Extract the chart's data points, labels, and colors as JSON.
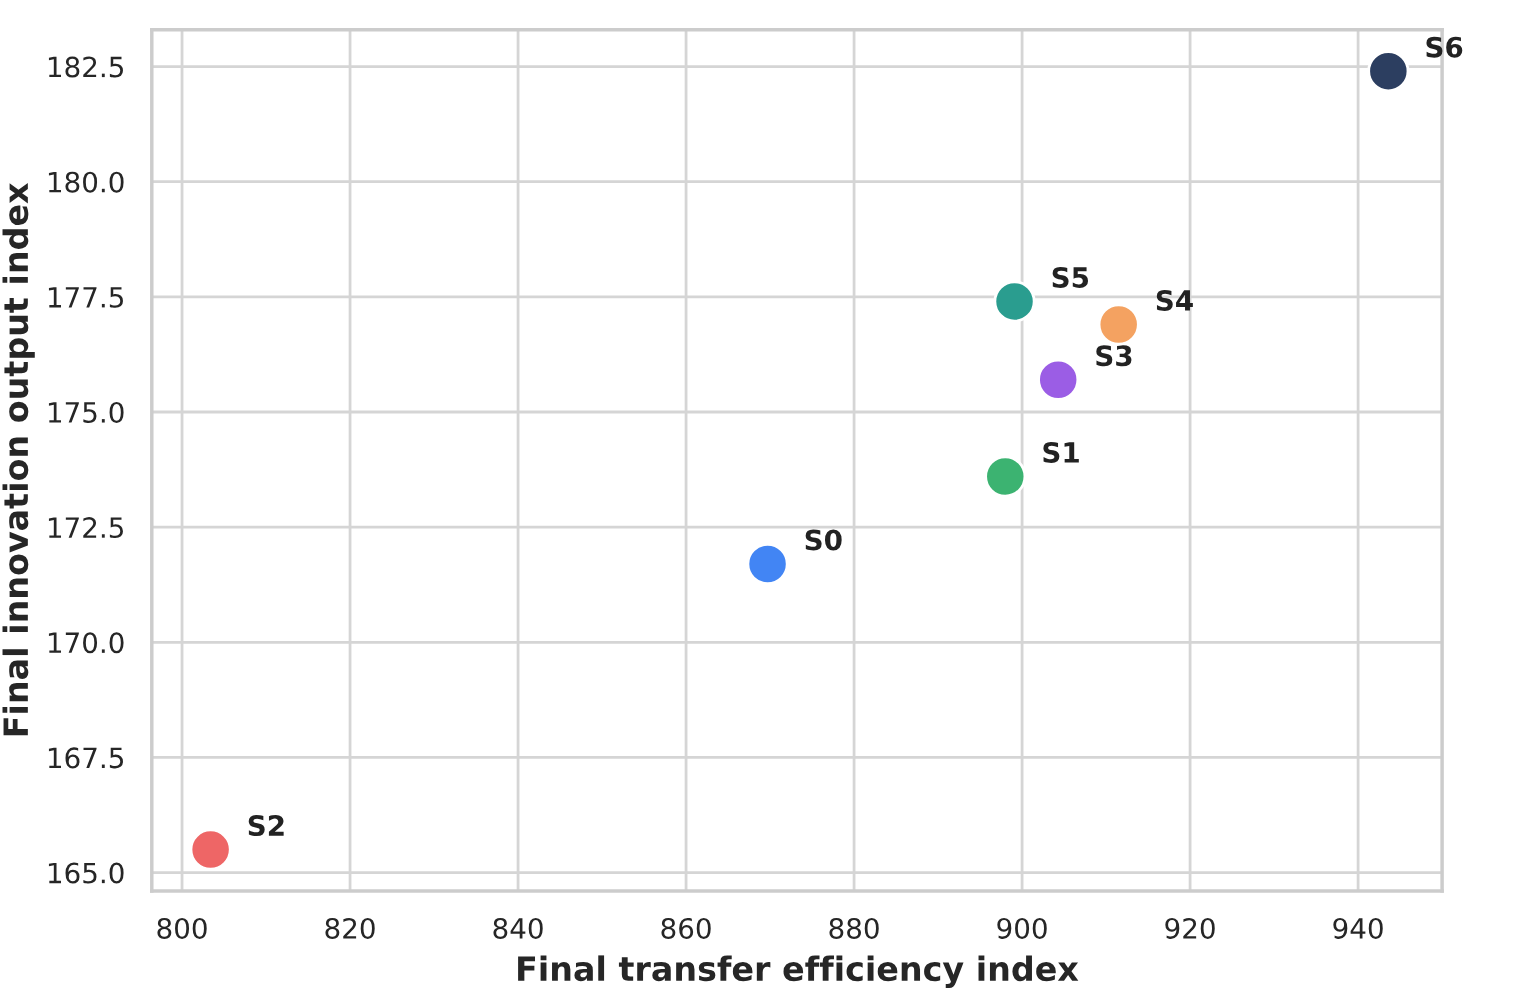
{
  "chart_data": {
    "type": "scatter",
    "xlabel": "Final transfer efficiency index",
    "ylabel": "Final innovation output index",
    "xlim": [
      796.4,
      950
    ],
    "ylim": [
      164.6,
      183.3
    ],
    "xticks": [
      800,
      820,
      840,
      860,
      880,
      900,
      920,
      940
    ],
    "yticks": [
      {
        "value": 165,
        "label": "165.0"
      },
      {
        "value": 167.5,
        "label": "167.5"
      },
      {
        "value": 170,
        "label": "170.0"
      },
      {
        "value": 172.5,
        "label": "172.5"
      },
      {
        "value": 175,
        "label": "175.0"
      },
      {
        "value": 177.5,
        "label": "177.5"
      },
      {
        "value": 180,
        "label": "180.0"
      },
      {
        "value": 182.5,
        "label": "182.5"
      }
    ],
    "grid": true,
    "legend": false,
    "marker": "circle",
    "series": [
      {
        "name": "S0",
        "color": "#4285f4",
        "x": [
          869.7
        ],
        "values": [
          171.7
        ]
      },
      {
        "name": "S1",
        "color": "#3cb371",
        "x": [
          898.0
        ],
        "values": [
          173.6
        ]
      },
      {
        "name": "S2",
        "color": "#ee6666",
        "x": [
          803.4
        ],
        "values": [
          165.5
        ]
      },
      {
        "name": "S3",
        "color": "#9b5de5",
        "x": [
          904.3
        ],
        "values": [
          175.7
        ]
      },
      {
        "name": "S4",
        "color": "#f4a261",
        "x": [
          911.5
        ],
        "values": [
          176.9
        ]
      },
      {
        "name": "S5",
        "color": "#2a9d8f",
        "x": [
          899.1
        ],
        "values": [
          177.4
        ]
      },
      {
        "name": "S6",
        "color": "#2c3e60",
        "x": [
          943.6
        ],
        "values": [
          182.4
        ]
      }
    ]
  }
}
